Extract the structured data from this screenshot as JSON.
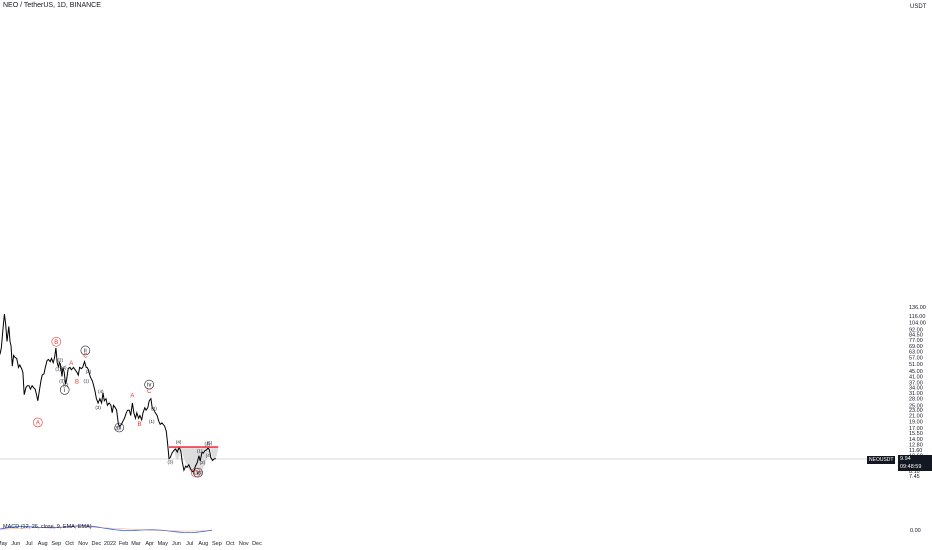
{
  "header": {
    "title": "NEO / TetherUS, 1D, BINANCE"
  },
  "axis": {
    "unit": "USDT"
  },
  "indicator": {
    "label": "MACD (12, 26, close, 9, EMA, EMA)",
    "axis_ticks": [
      "0.00"
    ]
  },
  "price_tag": {
    "symbol": "NEOUSDT",
    "price": "9.94",
    "countdown": "09:48:59"
  },
  "colors": {
    "price_line": "#000000",
    "resistance": "#f23645",
    "wave_red": "#e53935",
    "shade": "#d9d9d9",
    "macd": "#2962ff"
  },
  "chart_data": {
    "type": "line",
    "title": "NEO / TetherUS, 1D, BINANCE",
    "xlabel": "",
    "ylabel": "USDT",
    "log_scale": true,
    "y_ticks": [
      "136.00",
      "116.00",
      "104.00",
      "92.00",
      "84.50",
      "77.00",
      "69.00",
      "63.00",
      "57.00",
      "51.00",
      "45.00",
      "41.00",
      "37.00",
      "34.00",
      "31.00",
      "28.00",
      "25.00",
      "23.00",
      "21.00",
      "19.00",
      "17.00",
      "15.50",
      "14.00",
      "12.80",
      "11.60",
      "10.60",
      "9.90",
      "8.90",
      "8.10",
      "7.45"
    ],
    "x_ticks": [
      "May",
      "Jun",
      "Jul",
      "Aug",
      "Sep",
      "Oct",
      "Nov",
      "Dec",
      "2022",
      "Feb",
      "Mar",
      "Apr",
      "May",
      "Jun",
      "Jul",
      "Aug",
      "Sep",
      "Oct",
      "Nov",
      "Dec"
    ],
    "x_start": "2021-04-26",
    "last_price": 9.94,
    "resistance_level": 12.2,
    "series": [
      {
        "values": [
          [
            "2021-04-26",
            60
          ],
          [
            "2021-04-29",
            67
          ],
          [
            "2021-05-03",
            95
          ],
          [
            "2021-05-06",
            120
          ],
          [
            "2021-05-09",
            100
          ],
          [
            "2021-05-12",
            75
          ],
          [
            "2021-05-16",
            97
          ],
          [
            "2021-05-19",
            74
          ],
          [
            "2021-05-21",
            70
          ],
          [
            "2021-05-24",
            49
          ],
          [
            "2021-05-27",
            59
          ],
          [
            "2021-05-30",
            57
          ],
          [
            "2021-06-03",
            56
          ],
          [
            "2021-06-07",
            48
          ],
          [
            "2021-06-10",
            50
          ],
          [
            "2021-06-14",
            47
          ],
          [
            "2021-06-17",
            44
          ],
          [
            "2021-06-20",
            30
          ],
          [
            "2021-06-24",
            34
          ],
          [
            "2021-06-27",
            35
          ],
          [
            "2021-07-01",
            35
          ],
          [
            "2021-07-04",
            33
          ],
          [
            "2021-07-08",
            35
          ],
          [
            "2021-07-11",
            34
          ],
          [
            "2021-07-15",
            33
          ],
          [
            "2021-07-18",
            30
          ],
          [
            "2021-07-21",
            27
          ],
          [
            "2021-07-25",
            33
          ],
          [
            "2021-07-28",
            38
          ],
          [
            "2021-07-31",
            42
          ],
          [
            "2021-08-04",
            43
          ],
          [
            "2021-08-07",
            48
          ],
          [
            "2021-08-11",
            54
          ],
          [
            "2021-08-14",
            55
          ],
          [
            "2021-08-18",
            53
          ],
          [
            "2021-08-21",
            56
          ],
          [
            "2021-08-25",
            52
          ],
          [
            "2021-08-28",
            57
          ],
          [
            "2021-08-31",
            67
          ],
          [
            "2021-09-03",
            52
          ],
          [
            "2021-09-06",
            48
          ],
          [
            "2021-09-08",
            52
          ],
          [
            "2021-09-10",
            51
          ],
          [
            "2021-09-14",
            41
          ],
          [
            "2021-09-16",
            48
          ],
          [
            "2021-09-19",
            44
          ],
          [
            "2021-09-22",
            36
          ],
          [
            "2021-09-24",
            38
          ],
          [
            "2021-09-28",
            47
          ],
          [
            "2021-10-02",
            48
          ],
          [
            "2021-10-05",
            46
          ],
          [
            "2021-10-10",
            48
          ],
          [
            "2021-10-14",
            46
          ],
          [
            "2021-10-18",
            44
          ],
          [
            "2021-10-21",
            42
          ],
          [
            "2021-10-24",
            48
          ],
          [
            "2021-10-28",
            47
          ],
          [
            "2021-10-31",
            48
          ],
          [
            "2021-11-04",
            53
          ],
          [
            "2021-11-08",
            48
          ],
          [
            "2021-11-10",
            48
          ],
          [
            "2021-11-13",
            46
          ],
          [
            "2021-11-17",
            41
          ],
          [
            "2021-11-20",
            39
          ],
          [
            "2021-11-22",
            38
          ],
          [
            "2021-11-25",
            35
          ],
          [
            "2021-11-28",
            32
          ],
          [
            "2021-12-01",
            28
          ],
          [
            "2021-12-05",
            26
          ],
          [
            "2021-12-09",
            28
          ],
          [
            "2021-12-13",
            26
          ],
          [
            "2021-12-16",
            31
          ],
          [
            "2021-12-19",
            27
          ],
          [
            "2021-12-23",
            28
          ],
          [
            "2021-12-26",
            25
          ],
          [
            "2021-12-30",
            26
          ],
          [
            "2022-01-03",
            25
          ],
          [
            "2022-01-06",
            22
          ],
          [
            "2022-01-09",
            25
          ],
          [
            "2022-01-13",
            24
          ],
          [
            "2022-01-16",
            23
          ],
          [
            "2022-01-20",
            18
          ],
          [
            "2022-01-23",
            17.5
          ],
          [
            "2022-01-27",
            18
          ],
          [
            "2022-01-30",
            19
          ],
          [
            "2022-02-03",
            20
          ],
          [
            "2022-02-07",
            22
          ],
          [
            "2022-02-10",
            23
          ],
          [
            "2022-02-14",
            23
          ],
          [
            "2022-02-17",
            21
          ],
          [
            "2022-02-21",
            26
          ],
          [
            "2022-02-24",
            22
          ],
          [
            "2022-02-28",
            20
          ],
          [
            "2022-03-03",
            22
          ],
          [
            "2022-03-07",
            20
          ],
          [
            "2022-03-10",
            21
          ],
          [
            "2022-03-14",
            19.5
          ],
          [
            "2022-03-17",
            22
          ],
          [
            "2022-03-21",
            24
          ],
          [
            "2022-03-24",
            23
          ],
          [
            "2022-03-28",
            24
          ],
          [
            "2022-03-31",
            27
          ],
          [
            "2022-04-04",
            28
          ],
          [
            "2022-04-07",
            24
          ],
          [
            "2022-04-11",
            23
          ],
          [
            "2022-04-14",
            22
          ],
          [
            "2022-04-18",
            21
          ],
          [
            "2022-04-22",
            19
          ],
          [
            "2022-04-25",
            18
          ],
          [
            "2022-04-29",
            18.5
          ],
          [
            "2022-05-02",
            18
          ],
          [
            "2022-05-05",
            17.5
          ],
          [
            "2022-05-09",
            16
          ],
          [
            "2022-05-12",
            13
          ],
          [
            "2022-05-15",
            10
          ],
          [
            "2022-05-18",
            10.2
          ],
          [
            "2022-05-22",
            11
          ],
          [
            "2022-05-26",
            11.5
          ],
          [
            "2022-05-30",
            11.8
          ],
          [
            "2022-06-03",
            11.2
          ],
          [
            "2022-06-07",
            12.2
          ],
          [
            "2022-06-11",
            11.4
          ],
          [
            "2022-06-14",
            9.5
          ],
          [
            "2022-06-18",
            8.2
          ],
          [
            "2022-06-22",
            8.8
          ],
          [
            "2022-06-25",
            8.6
          ],
          [
            "2022-06-29",
            9.0
          ],
          [
            "2022-07-03",
            8.4
          ],
          [
            "2022-07-07",
            8.0
          ],
          [
            "2022-07-11",
            8.1
          ],
          [
            "2022-07-14",
            8.8
          ],
          [
            "2022-07-18",
            9.3
          ],
          [
            "2022-07-22",
            10.5
          ],
          [
            "2022-07-25",
            9.6
          ],
          [
            "2022-07-29",
            11.2
          ],
          [
            "2022-08-01",
            11.0
          ],
          [
            "2022-08-05",
            11.5
          ],
          [
            "2022-08-08",
            11.6
          ],
          [
            "2022-08-12",
            12.0
          ],
          [
            "2022-08-15",
            11.6
          ],
          [
            "2022-08-18",
            10.2
          ],
          [
            "2022-08-22",
            9.7
          ],
          [
            "2022-08-25",
            9.9
          ],
          [
            "2022-08-28",
            10.0
          ],
          [
            "2022-08-29",
            9.94
          ]
        ]
      }
    ],
    "annotations": [
      {
        "text": "A",
        "date": "2021-07-21",
        "price": 18.0,
        "style": "red-circle"
      },
      {
        "text": "B",
        "date": "2021-09-01",
        "price": 72.0,
        "style": "red-circle"
      },
      {
        "text": "(2)",
        "date": "2021-09-10",
        "price": 53.0,
        "style": "small"
      },
      {
        "text": "(1)",
        "date": "2021-09-05",
        "price": 45.5,
        "style": "small"
      },
      {
        "text": "(4)",
        "date": "2021-09-18",
        "price": 46.5,
        "style": "small"
      },
      {
        "text": "(3)",
        "date": "2021-09-14",
        "price": 37.0,
        "style": "small"
      },
      {
        "text": "(5)",
        "date": "2021-09-22",
        "price": 34.5,
        "style": "small"
      },
      {
        "text": "i",
        "date": "2021-09-20",
        "price": 31.5,
        "style": "black-circle"
      },
      {
        "text": "A",
        "date": "2021-10-05",
        "price": 50.0,
        "style": "red"
      },
      {
        "text": "B",
        "date": "2021-10-18",
        "price": 36.5,
        "style": "red"
      },
      {
        "text": "ii",
        "date": "2021-11-06",
        "price": 62.0,
        "style": "black-circle"
      },
      {
        "text": "C",
        "date": "2021-11-06",
        "price": 57.0,
        "style": "red"
      },
      {
        "text": "(2)",
        "date": "2021-11-13",
        "price": 43.5,
        "style": "small"
      },
      {
        "text": "(1)",
        "date": "2021-11-08",
        "price": 37.0,
        "style": "small"
      },
      {
        "text": "(4)",
        "date": "2021-12-11",
        "price": 31.0,
        "style": "small"
      },
      {
        "text": "(3)",
        "date": "2021-12-05",
        "price": 23.5,
        "style": "small"
      },
      {
        "text": "(5)",
        "date": "2022-01-17",
        "price": 16.5,
        "style": "small"
      },
      {
        "text": "iii",
        "date": "2022-01-22",
        "price": 16.5,
        "style": "black-circle"
      },
      {
        "text": "A",
        "date": "2022-02-21",
        "price": 28.5,
        "style": "red"
      },
      {
        "text": "B",
        "date": "2022-03-09",
        "price": 17.5,
        "style": "red"
      },
      {
        "text": "iv",
        "date": "2022-03-31",
        "price": 34.5,
        "style": "black-circle"
      },
      {
        "text": "C",
        "date": "2022-03-31",
        "price": 31.0,
        "style": "red"
      },
      {
        "text": "(2)",
        "date": "2022-04-11",
        "price": 23.0,
        "style": "small"
      },
      {
        "text": "(1)",
        "date": "2022-04-06",
        "price": 18.5,
        "style": "small"
      },
      {
        "text": "(4)",
        "date": "2022-06-06",
        "price": 13.0,
        "style": "small"
      },
      {
        "text": "(3)",
        "date": "2022-05-18",
        "price": 9.2,
        "style": "small"
      },
      {
        "text": "(1)",
        "date": "2022-07-24",
        "price": 11.1,
        "style": "small"
      },
      {
        "text": "(2)",
        "date": "2022-07-30",
        "price": 9.1,
        "style": "small"
      },
      {
        "text": "(3)",
        "date": "2022-08-10",
        "price": 12.5,
        "style": "small"
      },
      {
        "text": "(5)",
        "date": "2022-08-15",
        "price": 12.8,
        "style": "small"
      },
      {
        "text": "(4)",
        "date": "2022-08-13",
        "price": 10.3,
        "style": "small"
      },
      {
        "text": "C",
        "date": "2022-07-15",
        "price": 7.6,
        "style": "red-circle"
      },
      {
        "text": "v",
        "date": "2022-07-20",
        "price": 7.6,
        "style": "black-circle"
      },
      {
        "text": "(5)",
        "date": "2022-07-24",
        "price": 7.6,
        "style": "small"
      }
    ]
  }
}
